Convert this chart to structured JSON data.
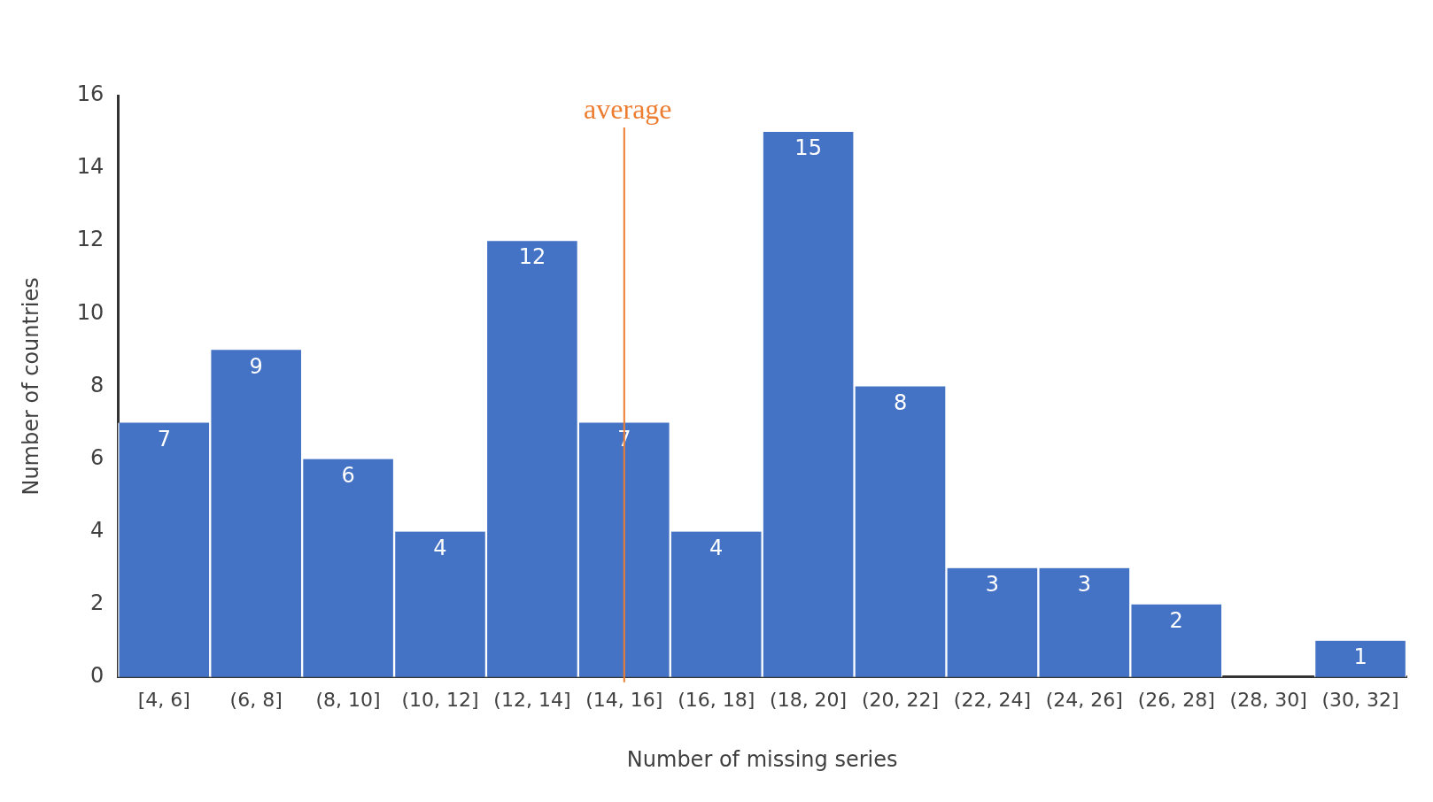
{
  "chart_data": {
    "type": "bar",
    "xlabel": "Number of missing series",
    "ylabel": "Number of countries",
    "categories": [
      "[4, 6]",
      "(6, 8]",
      "(8, 10]",
      "(10, 12]",
      "(12, 14]",
      "(14, 16]",
      "(16, 18]",
      "(18, 20]",
      "(20, 22]",
      "(22, 24]",
      "(24, 26]",
      "(26, 28]",
      "(28, 30]",
      "(30, 32]"
    ],
    "values": [
      7,
      9,
      6,
      4,
      12,
      7,
      4,
      15,
      8,
      3,
      3,
      2,
      0,
      1
    ],
    "value_labels": [
      "7",
      "9",
      "6",
      "4",
      "12",
      "7",
      "4",
      "15",
      "8",
      "3",
      "3",
      "2",
      null,
      "1"
    ],
    "color": "#4472c4",
    "ylim": [
      0,
      16
    ],
    "yticks": [
      0,
      2,
      4,
      6,
      8,
      10,
      12,
      14,
      16
    ],
    "ref_lines": [
      {
        "axis": "x",
        "value": "(14, 16]",
        "label": "average",
        "color": "#ed7d31"
      }
    ],
    "grid": false,
    "legend": false
  }
}
